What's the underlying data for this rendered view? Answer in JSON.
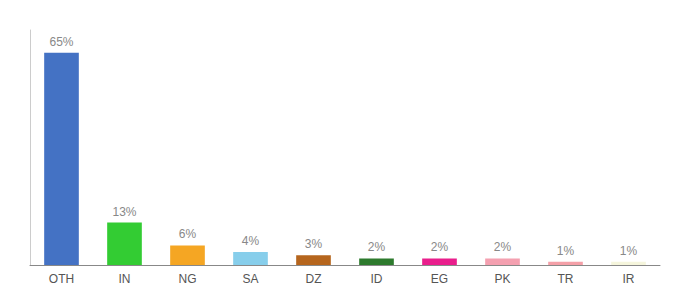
{
  "chart_data": {
    "type": "bar",
    "categories": [
      "OTH",
      "IN",
      "NG",
      "SA",
      "DZ",
      "ID",
      "EG",
      "PK",
      "TR",
      "IR"
    ],
    "values": [
      65,
      13,
      6,
      4,
      3,
      2,
      2,
      2,
      1,
      1
    ],
    "value_labels": [
      "65%",
      "13%",
      "6%",
      "4%",
      "3%",
      "2%",
      "2%",
      "2%",
      "1%",
      "1%"
    ],
    "colors": [
      "#4472c4",
      "#33cc33",
      "#f5a623",
      "#87ceeb",
      "#b5651d",
      "#2d7a2d",
      "#e91e8c",
      "#f4a0b0",
      "#f4a0a8",
      "#f5f5dc"
    ],
    "ylim": [
      0,
      72
    ],
    "grid": false,
    "data_labels": true,
    "tick_labels": "x"
  }
}
